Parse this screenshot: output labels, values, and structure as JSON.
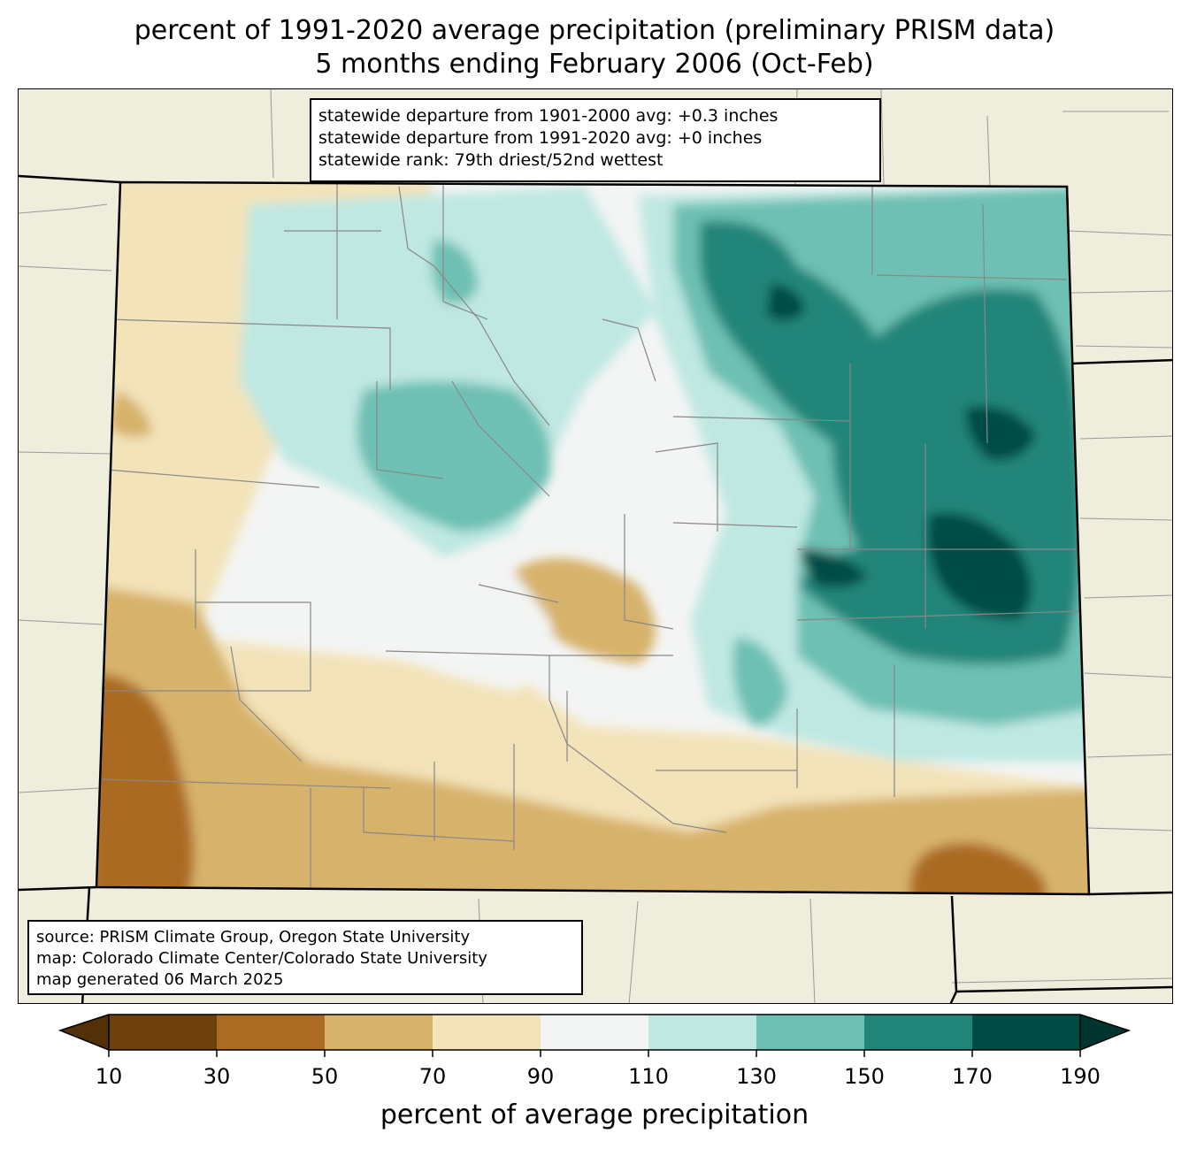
{
  "title": {
    "line1": "percent of 1991-2020 average precipitation (preliminary PRISM data)",
    "line2": "5 months ending February 2006 (Oct-Feb)"
  },
  "stats": {
    "line1": "statewide departure from 1901-2000 avg: +0.3 inches",
    "line2": "statewide departure from 1991-2020 avg: +0 inches",
    "line3": "statewide rank: 79th driest/52nd wettest"
  },
  "source": {
    "line1": "source: PRISM Climate Group, Oregon State University",
    "line2": "map: Colorado Climate Center/Colorado State University",
    "line3": "map generated 06 March 2025"
  },
  "colorbar": {
    "label": "percent of average precipitation",
    "ticks": [
      "10",
      "30",
      "50",
      "70",
      "90",
      "110",
      "130",
      "150",
      "170",
      "190"
    ],
    "colors": [
      "#6f3f0c",
      "#ab6b22",
      "#d7b26a",
      "#f3e3b9",
      "#f3f5f4",
      "#bfe8e2",
      "#6dc0b3",
      "#228579",
      "#004c44"
    ],
    "under_color": "#533007",
    "over_color": "#00362f"
  },
  "map_colors": {
    "background": "#efeddb",
    "border": "#000000",
    "county_lines": "#888888"
  }
}
